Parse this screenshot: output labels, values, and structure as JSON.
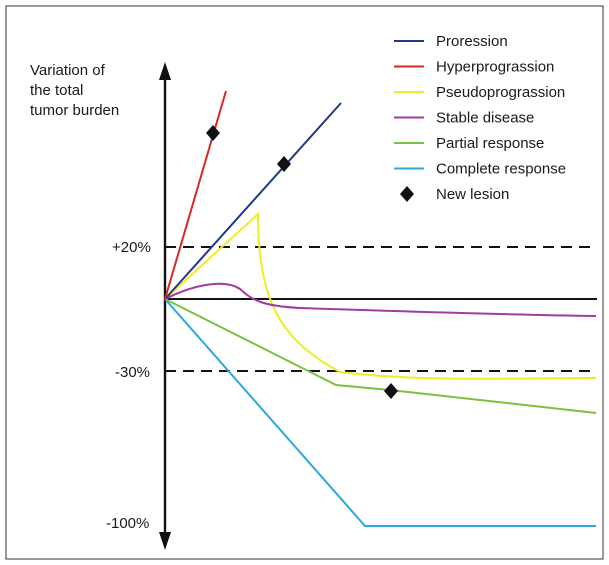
{
  "chart_data": {
    "type": "line",
    "ylabel_lines": [
      "Variation of",
      "the total",
      "tumor burden"
    ],
    "y_ticks": [
      "+20%",
      "-30%",
      "-100%"
    ],
    "legend_placement": "top-right",
    "legend": [
      {
        "key": "progression",
        "label": "Proression",
        "color": "#1f3a8a",
        "kind": "line"
      },
      {
        "key": "hyper",
        "label": "Hyperprograssion",
        "color": "#d62828",
        "kind": "line"
      },
      {
        "key": "pseudo",
        "label": "Pseudoprograssion",
        "color": "#eeee22",
        "kind": "line"
      },
      {
        "key": "stable",
        "label": "Stable disease",
        "color": "#a33aa0",
        "kind": "line"
      },
      {
        "key": "partial",
        "label": "Partial response",
        "color": "#7cc242",
        "kind": "line"
      },
      {
        "key": "complete",
        "label": "Complete response",
        "color": "#2aa8e0",
        "kind": "line"
      },
      {
        "key": "lesion",
        "label": "New lesion",
        "color": "#111111",
        "kind": "diamond"
      }
    ],
    "reference_lines": [
      "+20%",
      "-30%"
    ],
    "zero_line": true
  }
}
